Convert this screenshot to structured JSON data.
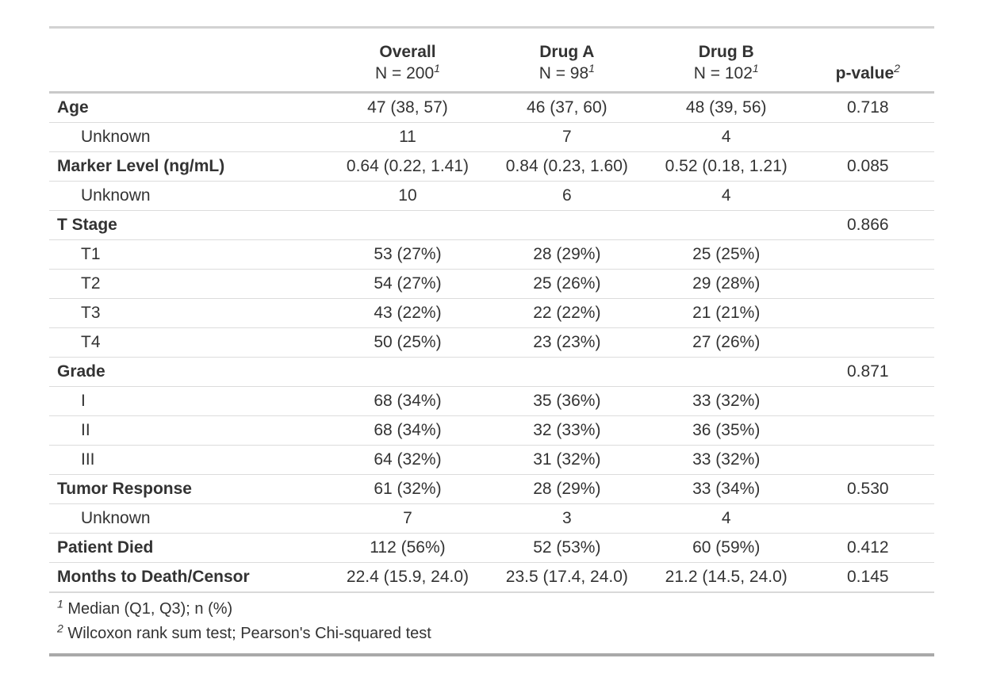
{
  "colors": {
    "text": "#333333",
    "border_light": "#d3d3d3",
    "border_row": "#dcdcdc",
    "border_bottom_dark": "#a9a9a9",
    "background": "#ffffff"
  },
  "table": {
    "columns": [
      {
        "label": ""
      },
      {
        "label": "Overall",
        "sublabel": "N = 200",
        "footnote_mark": "1"
      },
      {
        "label": "Drug A",
        "sublabel": "N = 98",
        "footnote_mark": "1"
      },
      {
        "label": "Drug B",
        "sublabel": "N = 102",
        "footnote_mark": "1"
      },
      {
        "label": "p-value",
        "footnote_mark": "2"
      }
    ],
    "rows": [
      {
        "label": "Age",
        "bold": true,
        "overall": "47 (38, 57)",
        "drug_a": "46 (37, 60)",
        "drug_b": "48 (39, 56)",
        "p_value": "0.718"
      },
      {
        "label": "Unknown",
        "bold": false,
        "overall": "11",
        "drug_a": "7",
        "drug_b": "4",
        "p_value": ""
      },
      {
        "label": "Marker Level (ng/mL)",
        "bold": true,
        "overall": "0.64 (0.22, 1.41)",
        "drug_a": "0.84 (0.23, 1.60)",
        "drug_b": "0.52 (0.18, 1.21)",
        "p_value": "0.085"
      },
      {
        "label": "Unknown",
        "bold": false,
        "overall": "10",
        "drug_a": "6",
        "drug_b": "4",
        "p_value": ""
      },
      {
        "label": "T Stage",
        "bold": true,
        "overall": "",
        "drug_a": "",
        "drug_b": "",
        "p_value": "0.866"
      },
      {
        "label": "T1",
        "bold": false,
        "overall": "53 (27%)",
        "drug_a": "28 (29%)",
        "drug_b": "25 (25%)",
        "p_value": ""
      },
      {
        "label": "T2",
        "bold": false,
        "overall": "54 (27%)",
        "drug_a": "25 (26%)",
        "drug_b": "29 (28%)",
        "p_value": ""
      },
      {
        "label": "T3",
        "bold": false,
        "overall": "43 (22%)",
        "drug_a": "22 (22%)",
        "drug_b": "21 (21%)",
        "p_value": ""
      },
      {
        "label": "T4",
        "bold": false,
        "overall": "50 (25%)",
        "drug_a": "23 (23%)",
        "drug_b": "27 (26%)",
        "p_value": ""
      },
      {
        "label": "Grade",
        "bold": true,
        "overall": "",
        "drug_a": "",
        "drug_b": "",
        "p_value": "0.871"
      },
      {
        "label": "I",
        "bold": false,
        "overall": "68 (34%)",
        "drug_a": "35 (36%)",
        "drug_b": "33 (32%)",
        "p_value": ""
      },
      {
        "label": "II",
        "bold": false,
        "overall": "68 (34%)",
        "drug_a": "32 (33%)",
        "drug_b": "36 (35%)",
        "p_value": ""
      },
      {
        "label": "III",
        "bold": false,
        "overall": "64 (32%)",
        "drug_a": "31 (32%)",
        "drug_b": "33 (32%)",
        "p_value": ""
      },
      {
        "label": "Tumor Response",
        "bold": true,
        "overall": "61 (32%)",
        "drug_a": "28 (29%)",
        "drug_b": "33 (34%)",
        "p_value": "0.530"
      },
      {
        "label": "Unknown",
        "bold": false,
        "overall": "7",
        "drug_a": "3",
        "drug_b": "4",
        "p_value": ""
      },
      {
        "label": "Patient Died",
        "bold": true,
        "overall": "112 (56%)",
        "drug_a": "52 (53%)",
        "drug_b": "60 (59%)",
        "p_value": "0.412"
      },
      {
        "label": "Months to Death/Censor",
        "bold": true,
        "overall": "22.4 (15.9, 24.0)",
        "drug_a": "23.5 (17.4, 24.0)",
        "drug_b": "21.2 (14.5, 24.0)",
        "p_value": "0.145"
      }
    ],
    "footnotes": [
      {
        "mark": "1",
        "text": "Median (Q1, Q3); n (%)"
      },
      {
        "mark": "2",
        "text": "Wilcoxon rank sum test; Pearson's Chi-squared test"
      }
    ]
  }
}
